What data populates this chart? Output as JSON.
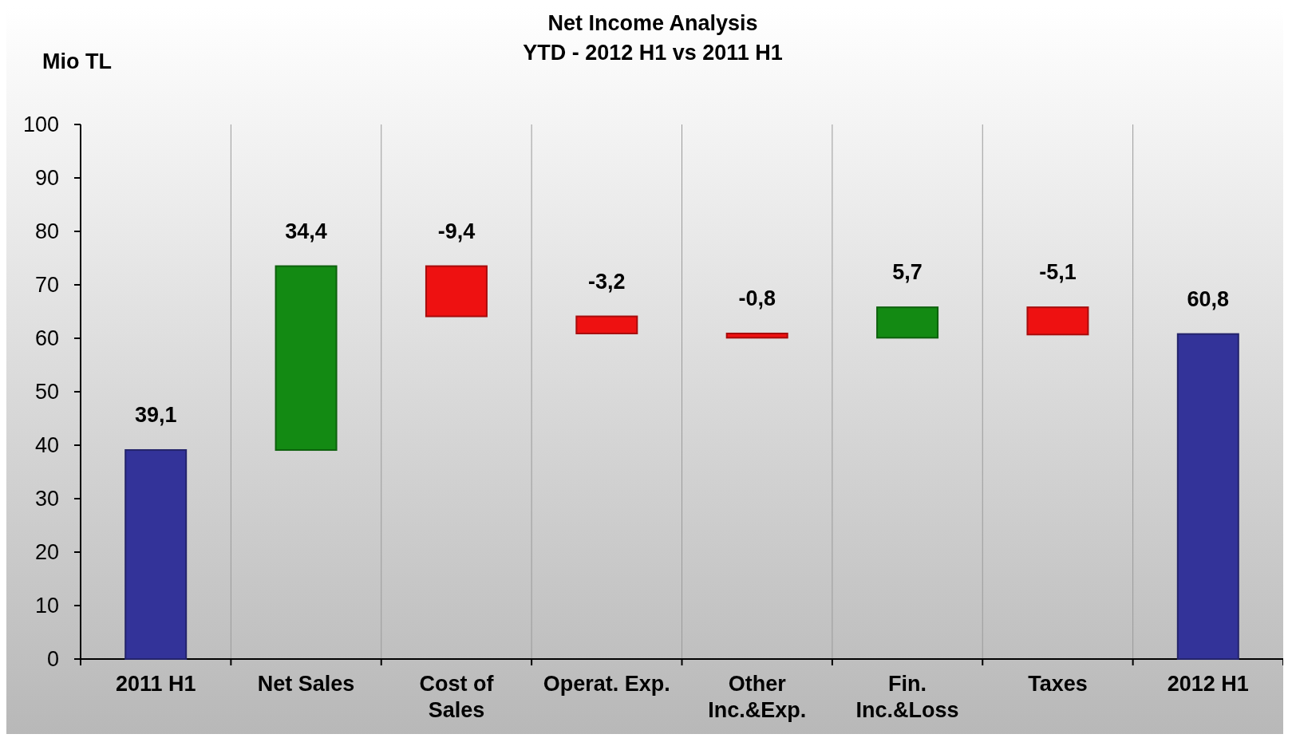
{
  "chart_data": {
    "type": "bar",
    "title": "Net Income Analysis",
    "subtitle": "YTD - 2012 H1 vs 2011  H1",
    "ylabel": "Mio TL",
    "categories": [
      "2011 H1",
      "Net Sales",
      "Cost of\nSales",
      "Operat. Exp.",
      "Other\nInc.&Exp.",
      "Fin.\nInc.&Loss",
      "Taxes",
      "2012 H1"
    ],
    "values": [
      39.1,
      34.4,
      -9.4,
      -3.2,
      -0.8,
      5.7,
      -5.1,
      60.8
    ],
    "base": [
      0,
      39.1,
      73.5,
      64.1,
      60.9,
      60.1,
      65.8,
      0
    ],
    "colors": [
      "#333399",
      "#138a13",
      "#ee1111",
      "#ee1111",
      "#ee1111",
      "#138a13",
      "#ee1111",
      "#333399"
    ],
    "value_labels": [
      "39,1",
      "34,4",
      "-9,4",
      "-3,2",
      "-0,8",
      "5,7",
      "-5,1",
      "60,8"
    ],
    "ylim": [
      0,
      100
    ],
    "yticks": [
      0,
      10,
      20,
      30,
      40,
      50,
      60,
      70,
      80,
      90,
      100
    ],
    "grid": "x"
  }
}
